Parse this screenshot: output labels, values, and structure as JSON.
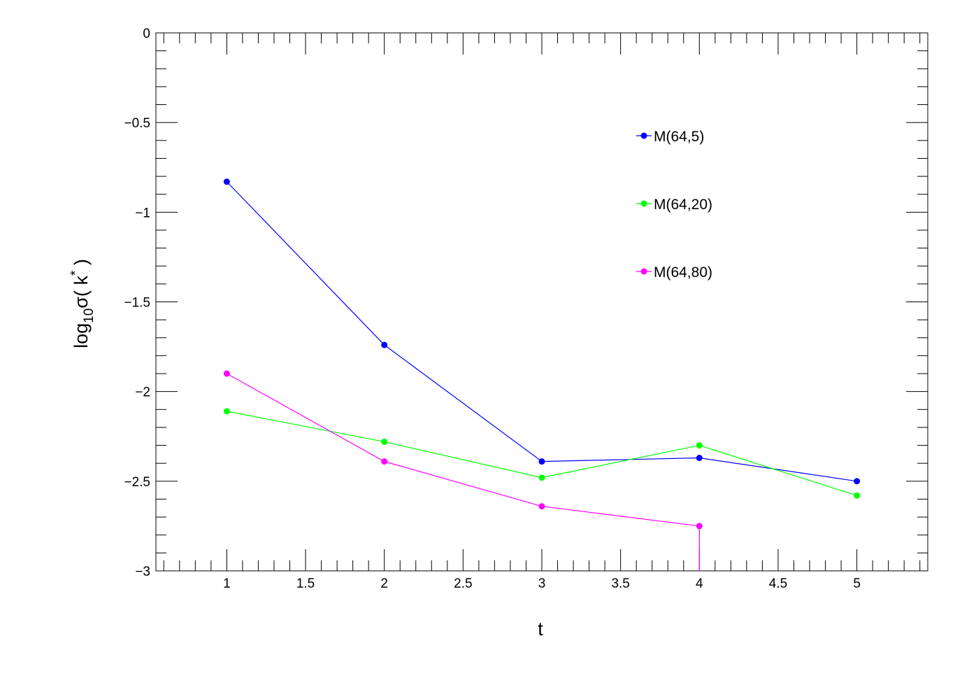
{
  "chart_data": {
    "type": "line",
    "title": "",
    "xlabel": "t",
    "ylabel": {
      "prefix": "log",
      "subscript": "10",
      "symbol": "σ",
      "body": "( k",
      "superscript": "*",
      "suffix": " )"
    },
    "xlim": [
      0.55,
      5.45
    ],
    "ylim": [
      -3,
      0
    ],
    "x_ticks": [
      1,
      1.5,
      2,
      2.5,
      3,
      3.5,
      4,
      4.5,
      5
    ],
    "x_tick_labels": [
      "1",
      "1.5",
      "2",
      "2.5",
      "3",
      "3.5",
      "4",
      "4.5",
      "5"
    ],
    "y_ticks": [
      0,
      -0.5,
      -1,
      -1.5,
      -2,
      -2.5,
      -3
    ],
    "y_tick_labels": [
      "0",
      "−0.5",
      "−1",
      "−1.5",
      "−2",
      "−2.5",
      "−3"
    ],
    "grid": false,
    "legend_position": "top-right",
    "series": [
      {
        "name": "M(64,5)",
        "color": "#0000ff",
        "x": [
          1,
          2,
          3,
          4,
          5
        ],
        "y": [
          -0.83,
          -1.74,
          -2.39,
          -2.37,
          -2.5
        ]
      },
      {
        "name": "M(64,20)",
        "color": "#00ff00",
        "x": [
          1,
          2,
          3,
          4,
          5
        ],
        "y": [
          -2.11,
          -2.28,
          -2.48,
          -2.3,
          -2.58
        ]
      },
      {
        "name": "M(64,80)",
        "color": "#ff00ff",
        "x": [
          1,
          2,
          3,
          4
        ],
        "y": [
          -1.9,
          -2.39,
          -2.64,
          -2.75
        ],
        "drop_to_axis_after_last": true
      }
    ]
  }
}
